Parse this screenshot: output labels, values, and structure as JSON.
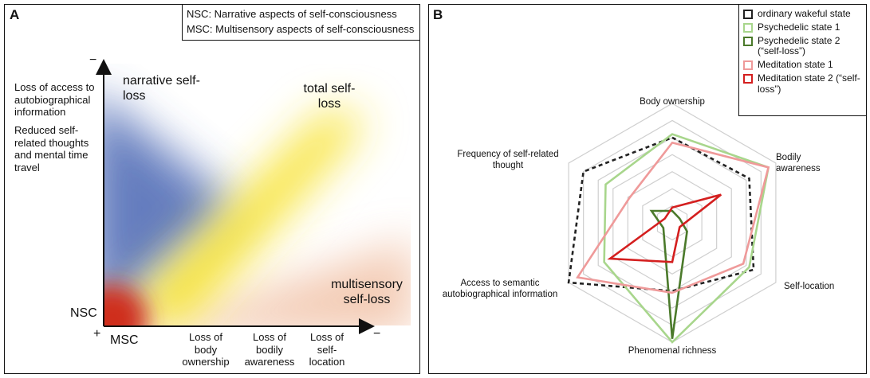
{
  "panel_a": {
    "label": "A",
    "legend": [
      "NSC: Narrative aspects of self-consciousness",
      "MSC: Multisensory aspects of self-consciousness"
    ],
    "y_axis_end": "−",
    "y_axis_labels": [
      "Loss of access to autobiographical information",
      "Reduced self-related thoughts and mental time travel"
    ],
    "regions": [
      "narrative self-loss",
      "total self-loss",
      "multisensory self-loss"
    ],
    "y_origin": "NSC",
    "origin": "+",
    "x_origin": "MSC",
    "x_axis_labels": [
      "Loss of body ownership",
      "Loss of bodily awareness",
      "Loss of self-location"
    ],
    "x_axis_end": "−"
  },
  "chart_data": {
    "type": "radar",
    "label": "B",
    "categories": [
      "Body ownership",
      "Bodily awareness",
      "Self-location",
      "Phenomenal richness",
      "Access to semantic autobiographical information",
      "Frequency of self-related thought"
    ],
    "rlim": [
      0,
      7
    ],
    "rticks": [
      1,
      2,
      3,
      4,
      5,
      6,
      7
    ],
    "grid": true,
    "legend": "upper right",
    "series": [
      {
        "name": "ordinary wakeful state",
        "color": "#222222",
        "dashed": true,
        "values": [
          5,
          5.2,
          5.5,
          4,
          7,
          6
        ]
      },
      {
        "name": "Psychedelic state 1",
        "color": "#a8d68c",
        "values": [
          5.2,
          6.5,
          5.2,
          7,
          4.6,
          4.5
        ]
      },
      {
        "name": "Psychedelic state 2 (“self-loss”)",
        "color": "#4b7a2b",
        "values": [
          0.7,
          0.5,
          1,
          6.8,
          0.6,
          1.4
        ]
      },
      {
        "name": "Meditation state 1",
        "color": "#ef9a9a",
        "values": [
          4.7,
          6.5,
          4.8,
          4.1,
          6.4,
          2.9
        ]
      },
      {
        "name": "Meditation state 2 (“self-loss”)",
        "color": "#d41f1f",
        "values": [
          0.9,
          3.3,
          0.5,
          2.3,
          4.2,
          0.5
        ]
      }
    ]
  }
}
